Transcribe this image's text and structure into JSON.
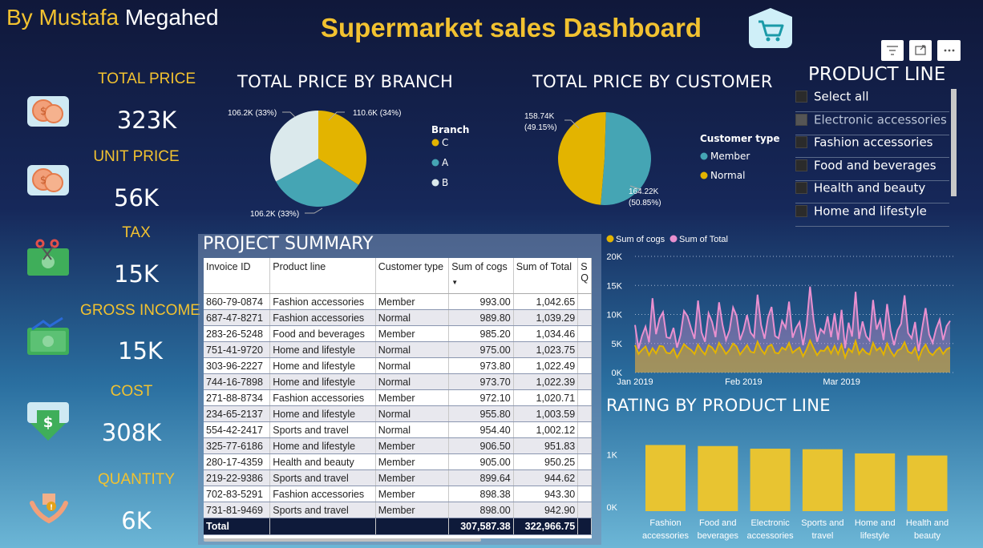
{
  "header": {
    "author_prefix": "By Mustafa",
    "author_name": "Megahed",
    "title": "Supermarket sales Dashboard",
    "icons": [
      "shopping-cart-icon",
      "filter-icon",
      "focus-mode-icon",
      "more-options-icon"
    ]
  },
  "kpis": [
    {
      "label": "TOTAL PRICE",
      "value": "323K",
      "icon": "coins-icon"
    },
    {
      "label": "UNIT PRICE",
      "value": "56K",
      "icon": "coins-icon"
    },
    {
      "label": "TAX",
      "value": "15K",
      "icon": "cash-scissors-icon"
    },
    {
      "label": "GROSS INCOME",
      "value": "15K",
      "icon": "money-growth-icon"
    },
    {
      "label": "COST",
      "value": "308K",
      "icon": "dollar-down-icon"
    },
    {
      "label": "QUANTITY",
      "value": "6K",
      "icon": "hands-box-icon"
    }
  ],
  "colors": {
    "gold": "#e3b400",
    "teal": "#45a5b4",
    "light": "#dbe9ec",
    "pink": "#e990cf",
    "bar_yellow": "#e8c431"
  },
  "branch_chart": {
    "title": "TOTAL PRICE BY BRANCH",
    "legend_title": "Branch",
    "legend": [
      "C",
      "A",
      "B"
    ]
  },
  "customer_chart": {
    "title": "TOTAL PRICE BY CUSTOMER",
    "legend_title": "Customer type",
    "legend": [
      "Member",
      "Normal"
    ]
  },
  "product_line": {
    "title": "PRODUCT LINE",
    "items": [
      "Select all",
      "Electronic accessories",
      "Fashion accessories",
      "Food and beverages",
      "Health and beauty",
      "Home and lifestyle"
    ]
  },
  "summary": {
    "title": "PROJECT SUMMARY",
    "columns": [
      "Invoice ID",
      "Product line",
      "Customer type",
      "Sum of cogs",
      "Sum of Total",
      "S Q"
    ],
    "rows": [
      [
        "860-79-0874",
        "Fashion accessories",
        "Member",
        "993.00",
        "1,042.65"
      ],
      [
        "687-47-8271",
        "Fashion accessories",
        "Normal",
        "989.80",
        "1,039.29"
      ],
      [
        "283-26-5248",
        "Food and beverages",
        "Member",
        "985.20",
        "1,034.46"
      ],
      [
        "751-41-9720",
        "Home and lifestyle",
        "Normal",
        "975.00",
        "1,023.75"
      ],
      [
        "303-96-2227",
        "Home and lifestyle",
        "Normal",
        "973.80",
        "1,022.49"
      ],
      [
        "744-16-7898",
        "Home and lifestyle",
        "Normal",
        "973.70",
        "1,022.39"
      ],
      [
        "271-88-8734",
        "Fashion accessories",
        "Member",
        "972.10",
        "1,020.71"
      ],
      [
        "234-65-2137",
        "Home and lifestyle",
        "Normal",
        "955.80",
        "1,003.59"
      ],
      [
        "554-42-2417",
        "Sports and travel",
        "Normal",
        "954.40",
        "1,002.12"
      ],
      [
        "325-77-6186",
        "Home and lifestyle",
        "Member",
        "906.50",
        "951.83"
      ],
      [
        "280-17-4359",
        "Health and beauty",
        "Member",
        "905.00",
        "950.25"
      ],
      [
        "219-22-9386",
        "Sports and travel",
        "Member",
        "899.64",
        "944.62"
      ],
      [
        "702-83-5291",
        "Fashion accessories",
        "Member",
        "898.38",
        "943.30"
      ],
      [
        "731-81-9469",
        "Sports and travel",
        "Member",
        "898.00",
        "942.90"
      ]
    ],
    "total": {
      "label": "Total",
      "cogs": "307,587.38",
      "sum_total": "322,966.75"
    }
  },
  "rating_title": "RATING BY PRODUCT LINE",
  "chart_data": [
    {
      "type": "pie",
      "title": "TOTAL PRICE BY BRANCH",
      "legend_title": "Branch",
      "categories": [
        "C",
        "A",
        "B"
      ],
      "values": [
        110.6,
        106.2,
        106.2
      ],
      "labels": [
        "110.6K (34%)",
        "106.2K (33%)",
        "106.2K (33%)"
      ]
    },
    {
      "type": "pie",
      "title": "TOTAL PRICE BY CUSTOMER",
      "legend_title": "Customer type",
      "categories": [
        "Member",
        "Normal"
      ],
      "values": [
        164.22,
        158.74
      ],
      "labels": [
        "164.22K (50.85%)",
        "158.74K (49.15%)"
      ]
    },
    {
      "type": "area",
      "legend_position": "top-left",
      "grid": true,
      "yticks": [
        "0K",
        "5K",
        "10K",
        "15K",
        "20K"
      ],
      "ylim": [
        0,
        20000
      ],
      "xticks": [
        "Jan 2019",
        "Feb 2019",
        "Mar 2019"
      ],
      "x_start": "2019-01-01",
      "x_end": "2019-03-30",
      "series": [
        {
          "name": "Sum of Total",
          "values": [
            8200,
            4100,
            6300,
            7900,
            5200,
            12800,
            6600,
            9300,
            10400,
            6100,
            5900,
            7700,
            4300,
            6500,
            10600,
            9700,
            7600,
            5800,
            12400,
            6900,
            5300,
            10200,
            8700,
            6100,
            12100,
            8200,
            5600,
            7300,
            11200,
            9800,
            5600,
            7300,
            9900,
            6900,
            6100,
            13400,
            8200,
            5800,
            9500,
            11300,
            6300,
            5900,
            8900,
            7700,
            12200,
            6000,
            7700,
            8700,
            4700,
            8200,
            14800,
            9100,
            5300,
            7500,
            6800,
            9700,
            6100,
            10200,
            5600,
            10800,
            4200,
            8600,
            6200,
            13900,
            5800,
            8800,
            6300,
            5500,
            12500,
            7400,
            9100,
            5600,
            11800,
            7200,
            4700,
            7300,
            8400,
            13300,
            6800,
            5900,
            8700,
            3700,
            7600,
            11100,
            6600,
            5100,
            7500,
            9100,
            5600,
            8000,
            8900
          ]
        },
        {
          "name": "Sum of cogs",
          "values": [
            4700,
            3200,
            3900,
            4500,
            3000,
            4200,
            3300,
            4600,
            4500,
            3400,
            3300,
            4100,
            2600,
            3700,
            4900,
            4300,
            3900,
            3200,
            4800,
            3800,
            3100,
            4700,
            4300,
            3400,
            5100,
            4200,
            3200,
            3900,
            5000,
            4500,
            3100,
            3900,
            4700,
            3600,
            3400,
            5300,
            4000,
            3200,
            4500,
            4800,
            3400,
            3300,
            4300,
            3900,
            5100,
            3400,
            3900,
            4300,
            2800,
            4000,
            5500,
            4200,
            3000,
            3800,
            3700,
            4500,
            3300,
            4600,
            3200,
            4800,
            2600,
            4100,
            3500,
            5400,
            3200,
            4100,
            3400,
            3100,
            5100,
            3800,
            4300,
            3100,
            5000,
            3700,
            2800,
            3800,
            4100,
            5200,
            3600,
            3300,
            4300,
            2300,
            3900,
            4800,
            3500,
            3000,
            3800,
            4300,
            3200,
            4000,
            4300
          ]
        }
      ]
    },
    {
      "type": "bar",
      "title": "RATING BY PRODUCT LINE",
      "categories": [
        "Fashion accessories",
        "Food and beverages",
        "Electronic accessories",
        "Sports and travel",
        "Home and lifestyle",
        "Health and beauty"
      ],
      "category_lines": [
        [
          "Fashion",
          "accessories"
        ],
        [
          "Food and",
          "beverages"
        ],
        [
          "Electronic",
          "accessories"
        ],
        [
          "Sports and",
          "travel"
        ],
        [
          "Home and",
          "lifestyle"
        ],
        [
          "Health and",
          "beauty"
        ]
      ],
      "values": [
        1260,
        1240,
        1190,
        1180,
        1100,
        1060
      ],
      "yticks": [
        "0K",
        "1K"
      ],
      "ylim": [
        0,
        1450
      ]
    }
  ]
}
